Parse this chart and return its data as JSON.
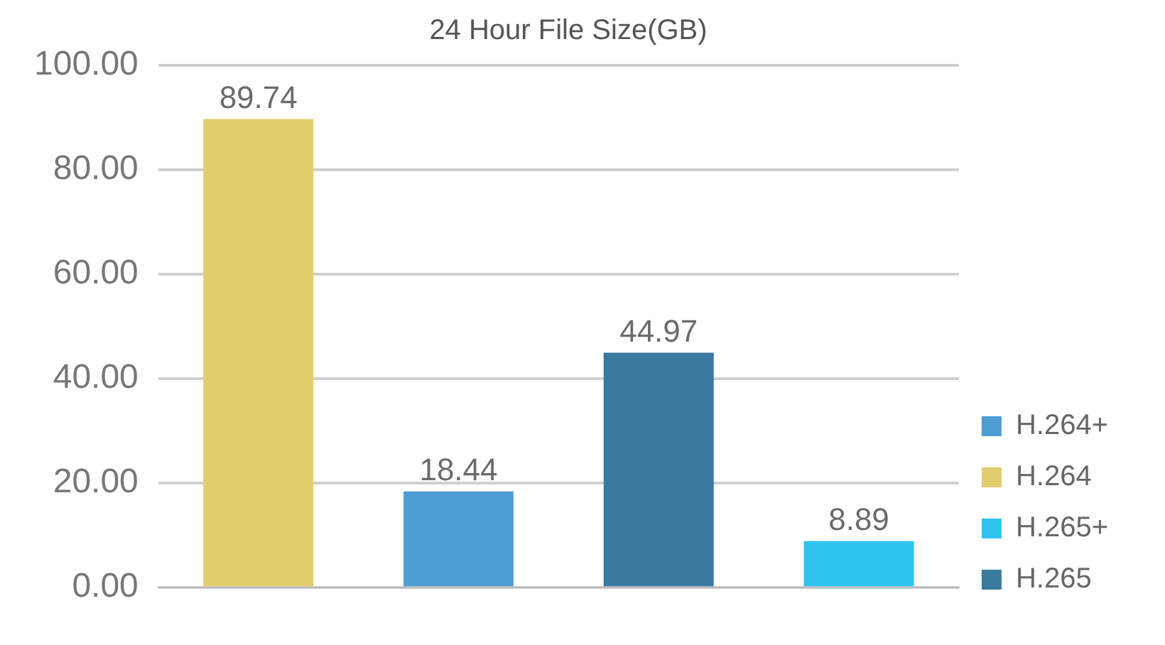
{
  "chart_data": {
    "type": "bar",
    "title": "24 Hour File Size(GB)",
    "categories": [
      null,
      null,
      null,
      null
    ],
    "series": [
      {
        "name": "H.264+",
        "color": "#4f9ed3",
        "values": [
          null,
          18.44,
          null,
          null
        ]
      },
      {
        "name": "H.264",
        "color": "#e3cd6e",
        "values": [
          89.74,
          null,
          null,
          null
        ]
      },
      {
        "name": "H.265+",
        "color": "#2ec4ef",
        "values": [
          null,
          null,
          null,
          8.89
        ]
      },
      {
        "name": "H.265",
        "color": "#3a7aa0",
        "values": [
          null,
          null,
          44.97,
          null
        ]
      }
    ],
    "ylim": [
      0,
      100
    ],
    "yticks": [
      {
        "value": 0,
        "label": "0.00"
      },
      {
        "value": 20,
        "label": "20.00"
      },
      {
        "value": 40,
        "label": "40.00"
      },
      {
        "value": 60,
        "label": "60.00"
      },
      {
        "value": 80,
        "label": "80.00"
      },
      {
        "value": 100,
        "label": "100.00"
      }
    ],
    "grid": "y",
    "legend": "right",
    "data_labels": true
  }
}
